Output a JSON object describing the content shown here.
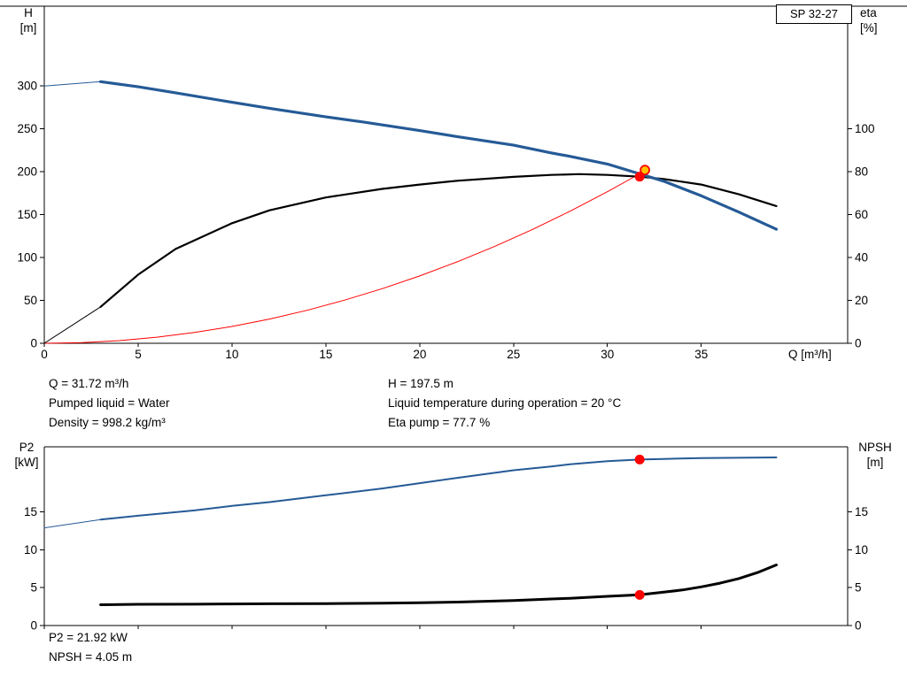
{
  "colors": {
    "blue": "#255a96",
    "black": "#000000",
    "red": "#ff0000",
    "duty_fill": "#ffc000",
    "axis": "#000000"
  },
  "title_box": {
    "label": "SP 32-27"
  },
  "chart_data": [
    {
      "id": "qh-eta-chart",
      "type": "line",
      "title": "SP 32-27",
      "xlabel": "Q [m³/h]",
      "ylabel_left_lines": [
        "H",
        "[m]"
      ],
      "ylabel_right_lines": [
        "eta",
        "[%]"
      ],
      "xlim": [
        0,
        42.8
      ],
      "ylim_left": [
        0,
        393
      ],
      "ylim_right": [
        0,
        157.2
      ],
      "xticks": [
        0,
        5,
        10,
        15,
        20,
        25,
        30,
        35
      ],
      "yticks_left": [
        0,
        50,
        100,
        150,
        200,
        250,
        300
      ],
      "yticks_right": [
        0,
        20,
        40,
        60,
        80,
        100
      ],
      "show_xtick_labels": true,
      "grid": false,
      "series": [
        {
          "name": "operating-point-curve",
          "color": "red",
          "axis": "left",
          "width": 1,
          "points": [
            [
              0,
              0
            ],
            [
              2,
              0.8
            ],
            [
              4,
              3.1
            ],
            [
              6,
              7.1
            ],
            [
              8,
              12.6
            ],
            [
              10,
              19.6
            ],
            [
              12,
              28.3
            ],
            [
              14,
              38.5
            ],
            [
              16,
              50.3
            ],
            [
              18,
              63.6
            ],
            [
              20,
              78.5
            ],
            [
              22,
              95.0
            ],
            [
              24,
              113.1
            ],
            [
              26,
              132.7
            ],
            [
              28,
              153.9
            ],
            [
              30,
              176.7
            ],
            [
              31.72,
              197.5
            ],
            [
              32.2,
              203.5
            ]
          ]
        },
        {
          "name": "eta-curve",
          "color": "black",
          "axis": "right",
          "width": 2.2,
          "lead_thin": true,
          "points": [
            [
              0,
              0
            ],
            [
              3,
              17
            ],
            [
              5,
              32
            ],
            [
              7,
              44
            ],
            [
              10,
              56
            ],
            [
              12,
              62
            ],
            [
              15,
              68
            ],
            [
              18,
              72
            ],
            [
              20,
              74
            ],
            [
              22,
              75.8
            ],
            [
              25,
              77.6
            ],
            [
              27,
              78.5
            ],
            [
              28.5,
              78.9
            ],
            [
              30,
              78.5
            ],
            [
              31.72,
              77.7
            ],
            [
              33,
              76.6
            ],
            [
              35,
              74
            ],
            [
              37,
              69.5
            ],
            [
              39,
              64
            ]
          ]
        },
        {
          "name": "head-curve",
          "color": "blue",
          "axis": "left",
          "width": 3.2,
          "lead_thin": true,
          "points": [
            [
              0,
              300
            ],
            [
              3,
              305
            ],
            [
              5,
              299
            ],
            [
              7,
              292
            ],
            [
              10,
              281
            ],
            [
              12,
              274
            ],
            [
              15,
              264
            ],
            [
              17,
              258
            ],
            [
              20,
              248
            ],
            [
              22,
              241
            ],
            [
              25,
              231
            ],
            [
              27,
              222
            ],
            [
              28,
              218
            ],
            [
              30,
              209
            ],
            [
              31.72,
              197.5
            ],
            [
              33,
              189
            ],
            [
              35,
              172
            ],
            [
              37,
              153
            ],
            [
              39,
              133
            ]
          ]
        }
      ],
      "markers": [
        {
          "style": "duty",
          "x": 32.0,
          "y": 202,
          "axis": "left"
        },
        {
          "style": "dot",
          "x": 31.72,
          "y": 77.7,
          "axis": "right"
        }
      ]
    },
    {
      "id": "p2-npsh-chart",
      "type": "line",
      "title": "",
      "xlabel": "",
      "ylabel_left_lines": [
        "P2",
        "[kW]"
      ],
      "ylabel_right_lines": [
        "NPSH",
        "[m]"
      ],
      "xlim": [
        0,
        42.8
      ],
      "ylim_left": [
        0,
        23.6
      ],
      "ylim_right": [
        0,
        23.6
      ],
      "xticks": [
        0,
        5,
        10,
        15,
        20,
        25,
        30,
        35
      ],
      "yticks_left": [
        0,
        5,
        10,
        15
      ],
      "yticks_right": [
        0,
        5,
        10,
        15
      ],
      "show_xtick_labels": false,
      "grid": false,
      "series": [
        {
          "name": "p2-curve",
          "color": "blue",
          "axis": "left",
          "width": 2,
          "lead_thin": true,
          "points": [
            [
              0,
              12.9
            ],
            [
              3,
              14.0
            ],
            [
              5,
              14.5
            ],
            [
              8,
              15.2
            ],
            [
              10,
              15.8
            ],
            [
              12,
              16.3
            ],
            [
              15,
              17.2
            ],
            [
              18,
              18.1
            ],
            [
              20,
              18.8
            ],
            [
              22,
              19.5
            ],
            [
              25,
              20.5
            ],
            [
              27,
              21.0
            ],
            [
              28,
              21.3
            ],
            [
              30,
              21.7
            ],
            [
              31.72,
              21.92
            ],
            [
              33,
              22.0
            ],
            [
              35,
              22.1
            ],
            [
              37,
              22.15
            ],
            [
              39,
              22.2
            ]
          ]
        },
        {
          "name": "npsh-curve",
          "color": "black",
          "axis": "left",
          "width": 3,
          "points": [
            [
              3,
              2.75
            ],
            [
              5,
              2.8
            ],
            [
              8,
              2.82
            ],
            [
              10,
              2.85
            ],
            [
              12,
              2.87
            ],
            [
              15,
              2.9
            ],
            [
              18,
              2.95
            ],
            [
              20,
              3.0
            ],
            [
              22,
              3.1
            ],
            [
              25,
              3.3
            ],
            [
              27,
              3.5
            ],
            [
              28,
              3.6
            ],
            [
              30,
              3.85
            ],
            [
              31.72,
              4.05
            ],
            [
              33,
              4.4
            ],
            [
              34,
              4.7
            ],
            [
              35,
              5.1
            ],
            [
              36,
              5.6
            ],
            [
              37,
              6.2
            ],
            [
              38,
              7.0
            ],
            [
              39,
              8.0
            ]
          ]
        }
      ],
      "markers": [
        {
          "style": "dot",
          "x": 31.72,
          "y": 21.92,
          "axis": "left"
        },
        {
          "style": "dot",
          "x": 31.72,
          "y": 4.05,
          "axis": "left"
        }
      ]
    }
  ],
  "info_top": {
    "left": [
      "Q = 31.72 m³/h",
      "Pumped liquid = Water",
      "Density = 998.2 kg/m³"
    ],
    "right": [
      "H = 197.5 m",
      "Liquid temperature during operation = 20 °C",
      "Eta pump = 77.7 %"
    ]
  },
  "info_bottom": [
    "P2 = 21.92 kW",
    "NPSH = 4.05 m"
  ]
}
